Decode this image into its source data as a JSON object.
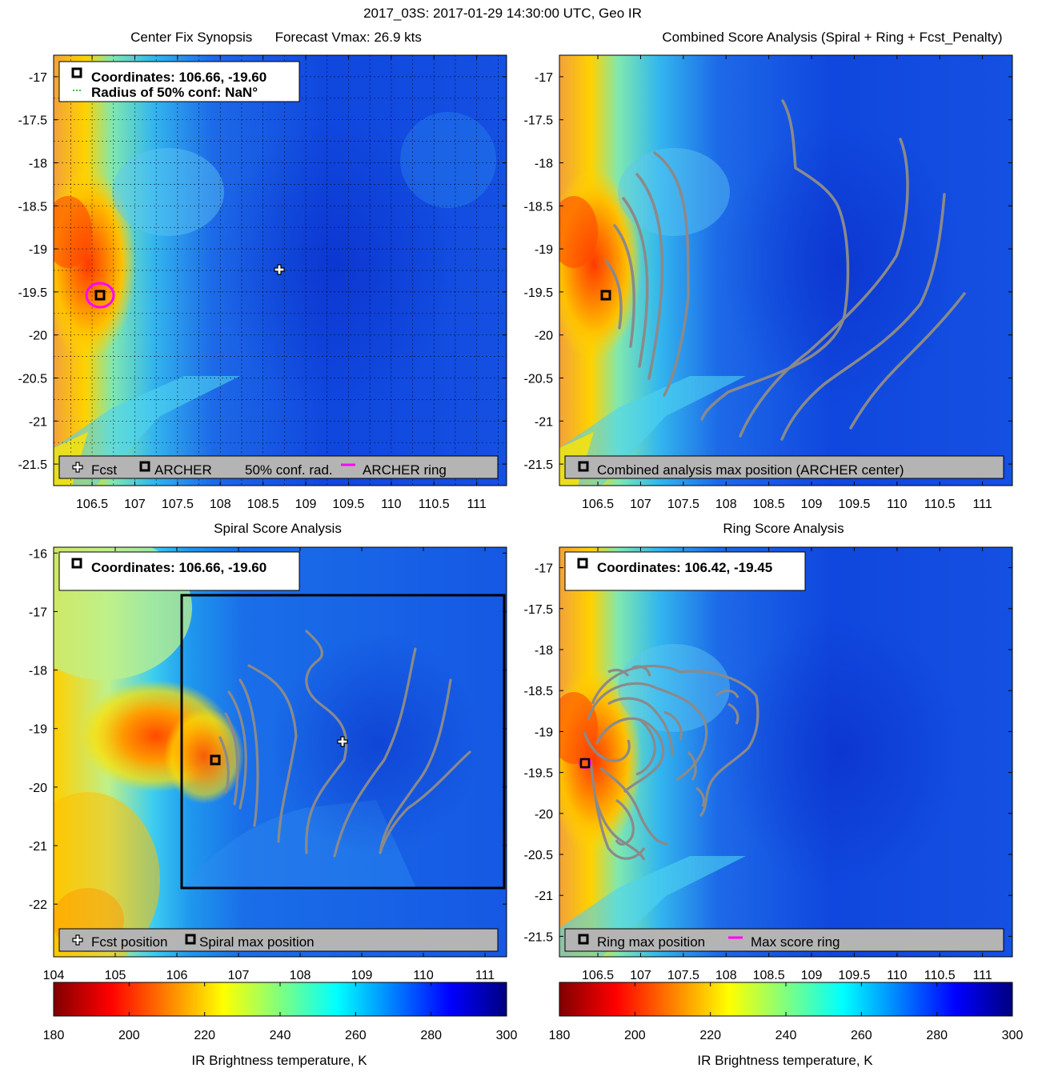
{
  "figure_title": "2017_03S: 2017-01-29 14:30:00 UTC, Geo IR",
  "colors": {
    "ring": "#ff00ff",
    "contour": "#8a8a8a",
    "legend_bg": "#b4b4b4",
    "grid": "#000000"
  },
  "colormap": "jet",
  "panels": {
    "p1": {
      "title": "Center Fix Synopsis      Forecast Vmax: 26.9 kts",
      "info_line1": "Coordinates: 106.66, -19.60",
      "info_line2": "Radius of 50% conf: NaN°",
      "legend": [
        "Fcst",
        "ARCHER",
        "50% conf. rad.",
        "ARCHER ring"
      ]
    },
    "p2": {
      "title": "Combined Score Analysis (Spiral + Ring + Fcst_Penalty)",
      "legend": [
        "Combined analysis max position (ARCHER center)"
      ]
    },
    "p3": {
      "title": "Spiral Score Analysis",
      "info_line1": "Coordinates: 106.66, -19.60",
      "legend": [
        "Fcst position",
        "Spiral max position"
      ]
    },
    "p4": {
      "title": "Ring Score Analysis",
      "info_line1": "Coordinates: 106.42, -19.45",
      "legend": [
        "Ring max position",
        "Max score ring"
      ]
    }
  },
  "colorbars": {
    "left": {
      "ticks": [
        "180",
        "200",
        "220",
        "240",
        "260",
        "280",
        "300"
      ],
      "label": "IR Brightness temperature, K"
    },
    "right": {
      "ticks": [
        "180",
        "200",
        "220",
        "240",
        "260",
        "280",
        "300"
      ],
      "label": "IR Brightness temperature, K"
    }
  },
  "chart_data": [
    {
      "type": "heatmap",
      "title": "Center Fix Synopsis      Forecast Vmax: 26.9 kts",
      "xlim": [
        106.05,
        111.35
      ],
      "ylim": [
        -21.75,
        -16.75
      ],
      "xticks": [
        "106.5",
        "107",
        "107.5",
        "108",
        "108.5",
        "109",
        "109.5",
        "110",
        "110.5",
        "111"
      ],
      "yticks": [
        "-17",
        "-17.5",
        "-18",
        "-18.5",
        "-19",
        "-19.5",
        "-20",
        "-20.5",
        "-21",
        "-21.5"
      ],
      "grid": true,
      "markers": [
        {
          "label": "Fcst",
          "lon": 108.75,
          "lat": -19.28
        },
        {
          "label": "ARCHER",
          "lon": 106.66,
          "lat": -19.6
        }
      ]
    },
    {
      "type": "heatmap",
      "title": "Combined Score Analysis (Spiral + Ring + Fcst_Penalty)",
      "xlim": [
        106.05,
        111.35
      ],
      "ylim": [
        -21.75,
        -16.75
      ],
      "xticks": [
        "106.5",
        "107",
        "107.5",
        "108",
        "108.5",
        "109",
        "109.5",
        "110",
        "110.5",
        "111"
      ],
      "yticks": [
        "-17",
        "-17.5",
        "-18",
        "-18.5",
        "-19",
        "-19.5",
        "-20",
        "-20.5",
        "-21",
        "-21.5"
      ],
      "grid": false,
      "markers": [
        {
          "label": "Combined analysis max position (ARCHER center)",
          "lon": 106.66,
          "lat": -19.6
        }
      ]
    },
    {
      "type": "heatmap",
      "title": "Spiral Score Analysis",
      "xlim": [
        104,
        111.35
      ],
      "ylim": [
        -22.9,
        -15.9
      ],
      "xticks": [
        "104",
        "105",
        "106",
        "107",
        "108",
        "109",
        "110",
        "111"
      ],
      "yticks": [
        "-16",
        "-17",
        "-18",
        "-19",
        "-20",
        "-21",
        "-22"
      ],
      "grid": false,
      "markers": [
        {
          "label": "Fcst position",
          "lon": 108.75,
          "lat": -19.28
        },
        {
          "label": "Spiral max position",
          "lon": 106.66,
          "lat": -19.6
        }
      ]
    },
    {
      "type": "heatmap",
      "title": "Ring Score Analysis",
      "xlim": [
        106.05,
        111.35
      ],
      "ylim": [
        -21.75,
        -16.75
      ],
      "xticks": [
        "106.5",
        "107",
        "107.5",
        "108",
        "108.5",
        "109",
        "109.5",
        "110",
        "110.5",
        "111"
      ],
      "yticks": [
        "-17",
        "-17.5",
        "-18",
        "-18.5",
        "-19",
        "-19.5",
        "-20",
        "-20.5",
        "-21",
        "-21.5"
      ],
      "grid": false,
      "markers": [
        {
          "label": "Ring max position",
          "lon": 106.42,
          "lat": -19.45
        }
      ]
    }
  ]
}
